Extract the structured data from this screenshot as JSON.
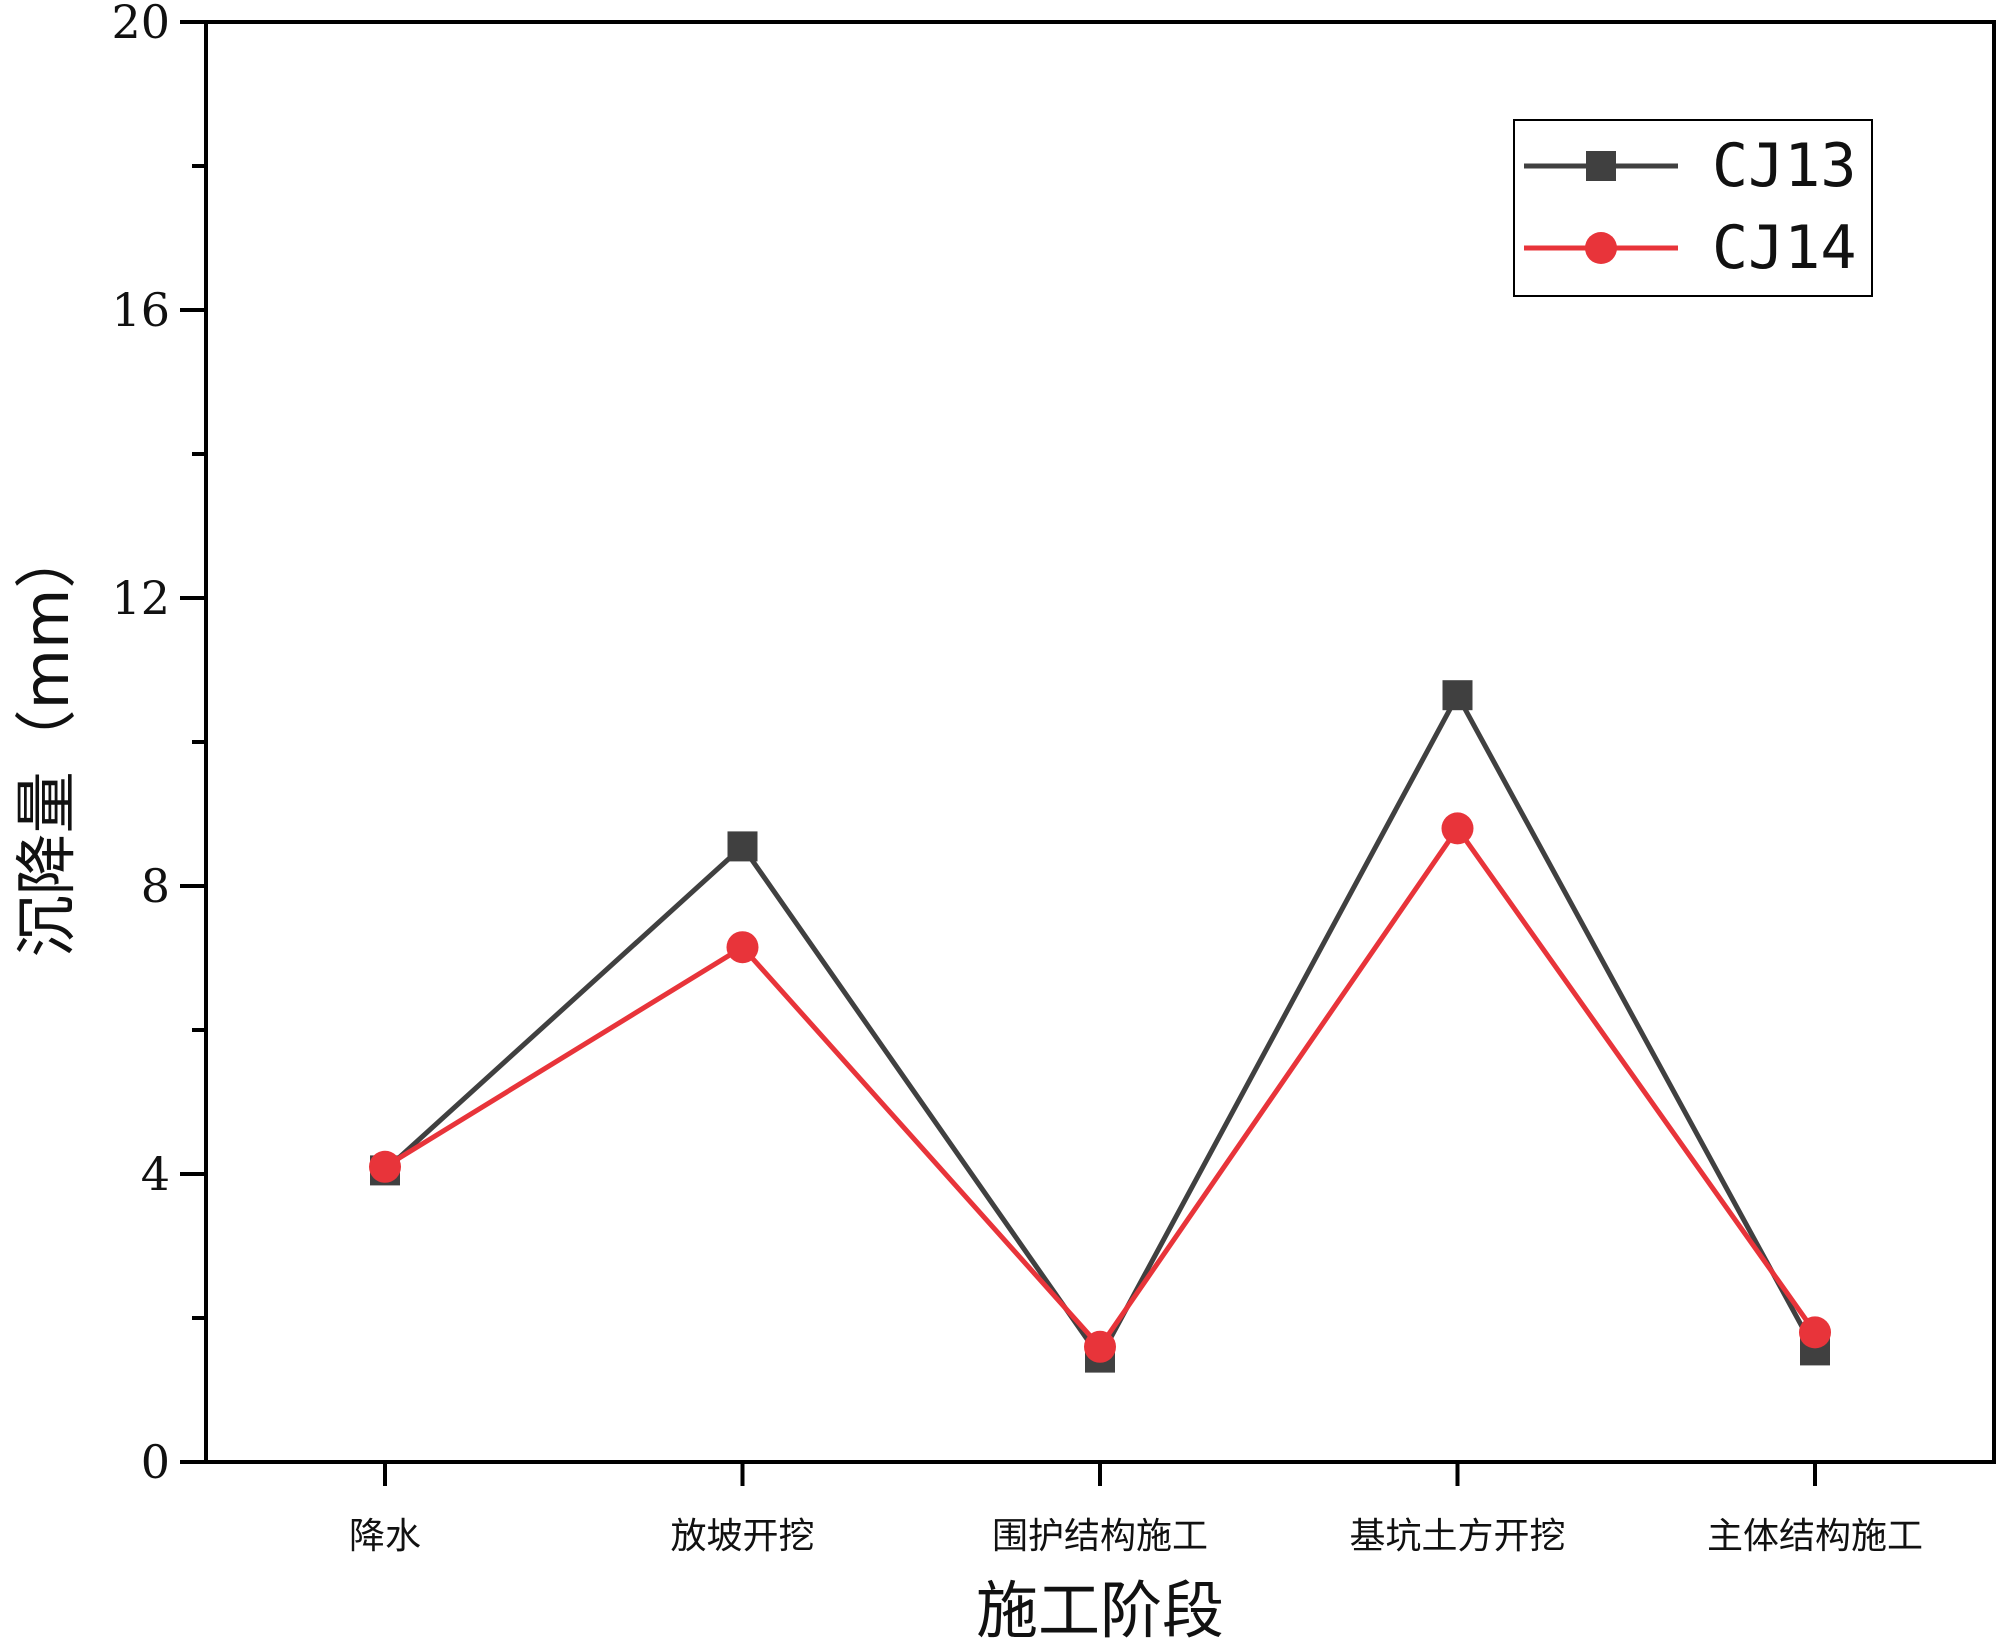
{
  "chart_data": {
    "type": "line",
    "title": "",
    "xlabel": "施工阶段",
    "ylabel": "沉降量（mm）",
    "categories": [
      "降水",
      "放坡开挖",
      "围护结构施工",
      "基坑土方开挖",
      "主体结构施工"
    ],
    "ylim": [
      0,
      20
    ],
    "yticks": [
      0,
      4,
      8,
      12,
      16,
      20
    ],
    "grid": false,
    "legend_position": "top-right",
    "series": [
      {
        "name": "CJ13",
        "color": "#404040",
        "marker": "square",
        "values": [
          4.05,
          8.55,
          1.45,
          10.65,
          1.55
        ]
      },
      {
        "name": "CJ14",
        "color": "#e8343a",
        "marker": "circle",
        "values": [
          4.1,
          7.15,
          1.6,
          8.8,
          1.8
        ]
      }
    ]
  }
}
